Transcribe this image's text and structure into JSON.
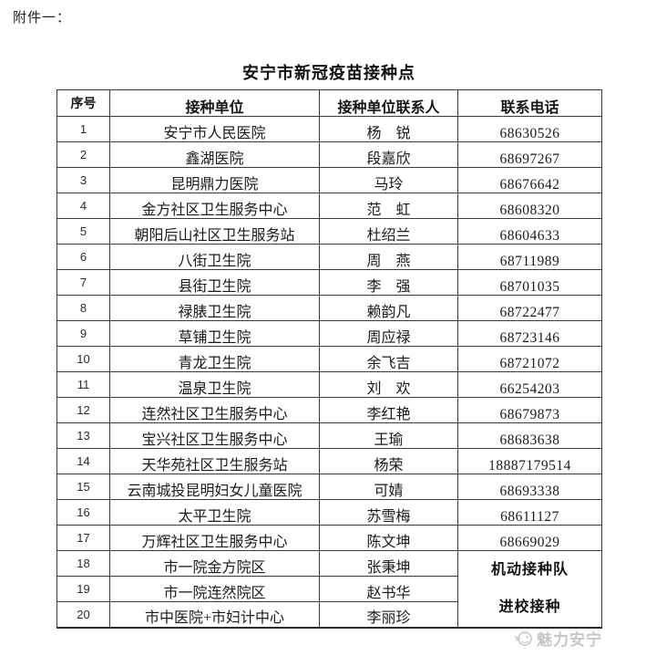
{
  "page": {
    "attachment_label": "附件一：",
    "title": "安宁市新冠疫苗接种点"
  },
  "table": {
    "headers": [
      "序号",
      "接种单位",
      "接种单位联系人",
      "联系电话"
    ],
    "rows": [
      {
        "no": "1",
        "unit": "安宁市人民医院",
        "contact": "杨　锐",
        "phone": "68630526"
      },
      {
        "no": "2",
        "unit": "鑫湖医院",
        "contact": "段嘉欣",
        "phone": "68697267"
      },
      {
        "no": "3",
        "unit": "昆明鼎力医院",
        "contact": "马玲",
        "phone": "68676642"
      },
      {
        "no": "4",
        "unit": "金方社区卫生服务中心",
        "contact": "范　虹",
        "phone": "68608320"
      },
      {
        "no": "5",
        "unit": "朝阳后山社区卫生服务站",
        "contact": "杜绍兰",
        "phone": "68604633"
      },
      {
        "no": "6",
        "unit": "八街卫生院",
        "contact": "周　燕",
        "phone": "68711989"
      },
      {
        "no": "7",
        "unit": "县街卫生院",
        "contact": "李　强",
        "phone": "68701035"
      },
      {
        "no": "8",
        "unit": "禄脿卫生院",
        "contact": "赖韵凡",
        "phone": "68722477"
      },
      {
        "no": "9",
        "unit": "草铺卫生院",
        "contact": "周应禄",
        "phone": "68723146"
      },
      {
        "no": "10",
        "unit": "青龙卫生院",
        "contact": "余飞吉",
        "phone": "68721072"
      },
      {
        "no": "11",
        "unit": "温泉卫生院",
        "contact": "刘　欢",
        "phone": "66254203"
      },
      {
        "no": "12",
        "unit": "连然社区卫生服务中心",
        "contact": "李红艳",
        "phone": "68679873"
      },
      {
        "no": "13",
        "unit": "宝兴社区卫生服务中心",
        "contact": "王瑜",
        "phone": "68683638"
      },
      {
        "no": "14",
        "unit": "天华苑社区卫生服务站",
        "contact": "杨荣",
        "phone": "18887179514"
      },
      {
        "no": "15",
        "unit": "云南城投昆明妇女儿童医院",
        "contact": "可婧",
        "phone": "68693338"
      },
      {
        "no": "16",
        "unit": "太平卫生院",
        "contact": "苏雪梅",
        "phone": "68611127"
      },
      {
        "no": "17",
        "unit": "万辉社区卫生服务中心",
        "contact": "陈文坤",
        "phone": "68669029"
      },
      {
        "no": "18",
        "unit": "市一院金方院区",
        "contact": "张秉坤"
      },
      {
        "no": "19",
        "unit": "市一院连然院区",
        "contact": "赵书华"
      },
      {
        "no": "20",
        "unit": "市中医院+市妇计中心",
        "contact": "李丽珍"
      }
    ],
    "merged_note": {
      "applies_to_rows": [
        "18",
        "19",
        "20"
      ],
      "line1": "机动接种队",
      "line2": "进校接种"
    }
  },
  "watermark": {
    "text": "魅力安宁",
    "icon": "bird-mascot-icon",
    "color": "#c7c7c7"
  }
}
